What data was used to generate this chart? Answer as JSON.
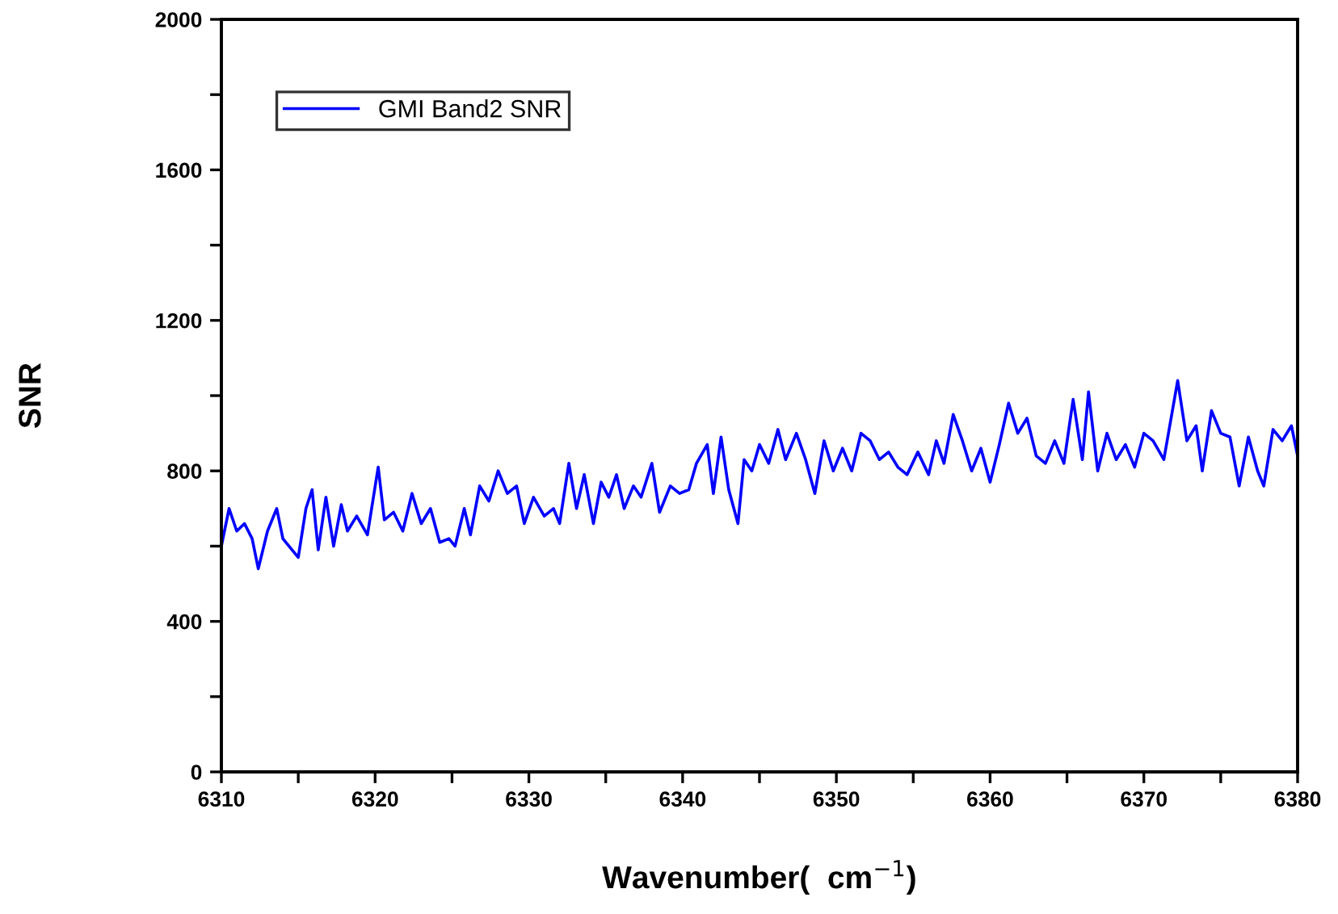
{
  "chart_data": {
    "type": "line",
    "xlabel": "Wavenumber(  cm$^{−1}$)",
    "ylabel": "SNR",
    "xlim": [
      6310,
      6380
    ],
    "ylim": [
      0,
      2000
    ],
    "xticks": [
      6310,
      {
        "value": 6315,
        "label": null
      },
      6320,
      {
        "value": 6325,
        "label": null
      },
      6330,
      {
        "value": 6335,
        "label": null
      },
      6340,
      {
        "value": 6345,
        "label": null
      },
      6350,
      {
        "value": 6355,
        "label": null
      },
      6360,
      {
        "value": 6365,
        "label": null
      },
      6370,
      {
        "value": 6375,
        "label": null
      },
      6380
    ],
    "yticks": [
      0,
      {
        "value": 200,
        "label": null
      },
      400,
      {
        "value": 600,
        "label": null
      },
      800,
      {
        "value": 1000,
        "label": null
      },
      1200,
      {
        "value": 1400,
        "label": null
      },
      1600,
      {
        "value": 1800,
        "label": null
      },
      2000
    ],
    "grid": false,
    "legend": "top left",
    "marker": "none",
    "line_style": "solid",
    "series": [
      {
        "name": "GMI Band2 SNR",
        "color": "#0000ff",
        "x": [
          6310,
          6310.5,
          6311,
          6311.5,
          6312,
          6312.4,
          6313,
          6313.6,
          6314,
          6314.6,
          6315,
          6315.5,
          6315.9,
          6316.3,
          6316.8,
          6317.3,
          6317.8,
          6318.2,
          6318.8,
          6319.5,
          6320.2,
          6320.6,
          6321.2,
          6321.8,
          6322.4,
          6323,
          6323.6,
          6324.2,
          6324.8,
          6325.2,
          6325.8,
          6326.2,
          6326.8,
          6327.4,
          6328,
          6328.6,
          6329.2,
          6329.7,
          6330.3,
          6331,
          6331.6,
          6332,
          6332.6,
          6333.1,
          6333.6,
          6334.2,
          6334.7,
          6335.2,
          6335.7,
          6336.2,
          6336.8,
          6337.3,
          6338,
          6338.5,
          6339.2,
          6339.8,
          6340.4,
          6340.9,
          6341.6,
          6342,
          6342.5,
          6343,
          6343.6,
          6344,
          6344.5,
          6345,
          6345.6,
          6346.2,
          6346.7,
          6347.4,
          6348,
          6348.6,
          6349.2,
          6349.8,
          6350.4,
          6351,
          6351.6,
          6352.2,
          6352.8,
          6353.4,
          6354,
          6354.6,
          6355.3,
          6356,
          6356.5,
          6357,
          6357.6,
          6358.2,
          6358.8,
          6359.4,
          6360,
          6360.6,
          6361.2,
          6361.8,
          6362.4,
          6363,
          6363.6,
          6364.2,
          6364.8,
          6365.4,
          6366,
          6366.4,
          6367,
          6367.6,
          6368.2,
          6368.8,
          6369.4,
          6370,
          6370.6,
          6371.3,
          6372.2,
          6372.8,
          6373.4,
          6373.8,
          6374.4,
          6375,
          6375.6,
          6376.2,
          6376.8,
          6377.4,
          6377.8,
          6378.4,
          6379,
          6379.6,
          6380
        ],
        "values": [
          600,
          700,
          640,
          660,
          620,
          540,
          640,
          700,
          620,
          590,
          570,
          700,
          750,
          590,
          730,
          600,
          710,
          640,
          680,
          630,
          810,
          670,
          690,
          640,
          740,
          660,
          700,
          610,
          620,
          600,
          700,
          630,
          760,
          720,
          800,
          740,
          760,
          660,
          730,
          680,
          700,
          660,
          820,
          700,
          790,
          660,
          770,
          730,
          790,
          700,
          760,
          730,
          820,
          690,
          760,
          740,
          750,
          820,
          870,
          740,
          890,
          750,
          660,
          830,
          800,
          870,
          820,
          910,
          830,
          900,
          830,
          740,
          880,
          800,
          860,
          800,
          900,
          880,
          830,
          850,
          810,
          790,
          850,
          790,
          880,
          820,
          950,
          880,
          800,
          860,
          770,
          870,
          980,
          900,
          940,
          840,
          820,
          880,
          820,
          990,
          830,
          1010,
          800,
          900,
          830,
          870,
          810,
          900,
          880,
          830,
          1040,
          880,
          920,
          800,
          960,
          900,
          890,
          760,
          890,
          800,
          760,
          910,
          880,
          920,
          840
        ]
      }
    ]
  }
}
